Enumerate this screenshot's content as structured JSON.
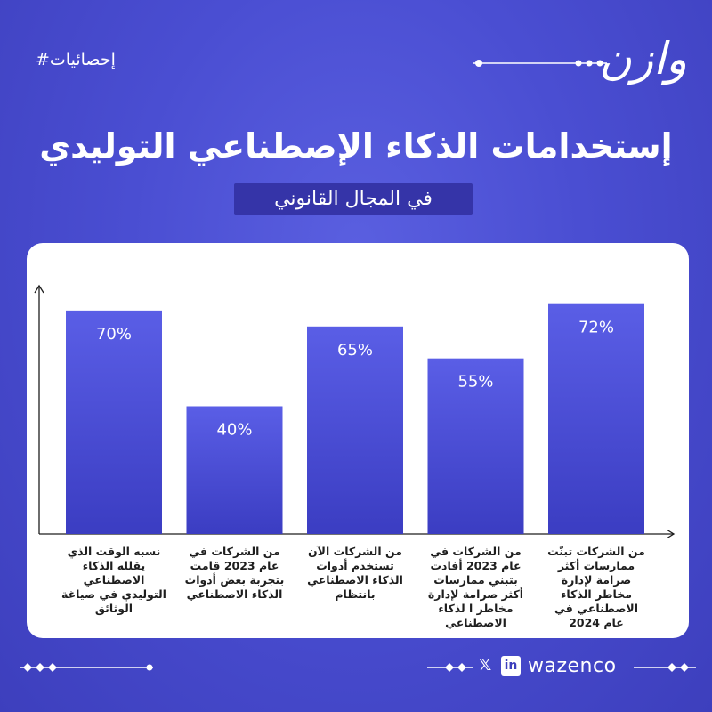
{
  "header": {
    "hashtag": "#إحصائيات",
    "logo_text": "وازن",
    "title": "إستخدامات الذكاء الإصطناعي التوليدي",
    "subtitle": "في المجال القانوني"
  },
  "chart_data": {
    "type": "bar",
    "categories": [
      "نسبه الوقت الذي يقلله الذكاء الاصطناعي التوليدي في صياغة الوثائق",
      "من الشركات في عام 2023 قامت بتجربة بعض أدوات الذكاء الاصطناعي",
      "من الشركات الآن تستخدم أدوات الذكاء الاصطناعي بانتظام",
      "من الشركات في عام 2023 أفادت بتبني ممارسات أكثر صرامة لإدارة مخاطر ا لذكاء الاصطناعي",
      "من الشركات تبنّت ممارسات أكثر صرامة لإدارة مخاطر الذكاء الاصطناعي في عام 2024"
    ],
    "values": [
      70,
      40,
      65,
      55,
      72
    ],
    "value_labels": [
      "70%",
      "40%",
      "65%",
      "55%",
      "72%"
    ],
    "ylim": [
      0,
      80
    ],
    "grid": false,
    "bar_color_top": "#5a5ee6",
    "bar_color_bottom": "#3b3dc2"
  },
  "footer": {
    "brand": "wazenco",
    "x_icon": "x-icon",
    "linkedin_icon": "linkedin-icon",
    "in_text": "in",
    "x_text": "𝕏"
  }
}
